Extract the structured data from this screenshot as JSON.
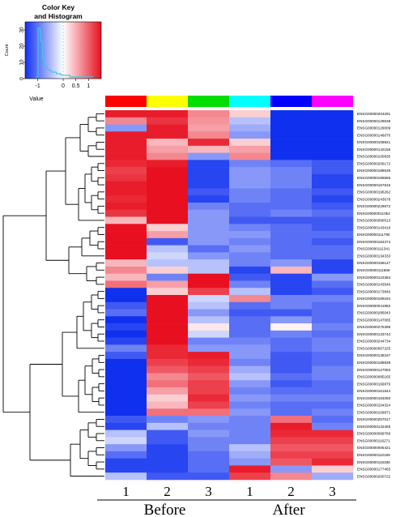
{
  "chart_data": {
    "type": "heatmap",
    "color_key": {
      "title_line1": "Color Key",
      "title_line2": "and Histogram",
      "ylabel": "Count",
      "xlabel": "Value",
      "x_ticks": [
        "-1",
        "0",
        "0.5",
        "1"
      ],
      "x_tick_values": [
        -1,
        0,
        0.5,
        1
      ],
      "y_ticks": [
        "0",
        "10",
        "20",
        "30"
      ],
      "y_tick_values": [
        0,
        10,
        20,
        30
      ],
      "xlim": [
        -1.5,
        1.5
      ],
      "ylim": [
        0,
        35
      ],
      "hist_values": [
        1,
        31,
        23,
        12,
        8,
        6,
        5,
        4,
        4,
        3,
        3,
        2,
        2,
        2,
        2,
        1,
        1,
        1,
        1,
        1,
        1,
        1,
        1,
        1,
        1
      ],
      "hist_bin_start": -1.08,
      "hist_bin_width": 0.09,
      "colors": {
        "low": "#1030f0",
        "mid": "#ffffff",
        "high": "#e81020",
        "hist": "#40c8e8"
      }
    },
    "column_colors": [
      "#ff0000",
      "#ffff00",
      "#00dd00",
      "#00ffff",
      "#0000ff",
      "#ff00ff"
    ],
    "column_labels": [
      "1",
      "2",
      "3",
      "1",
      "2",
      "3"
    ],
    "groups": [
      {
        "label": "Before",
        "columns": [
          0,
          1,
          2
        ]
      },
      {
        "label": "After",
        "columns": [
          3,
          4,
          5
        ]
      }
    ],
    "rows": [
      "ENSG00000204291",
      "ENSG00000129538",
      "ENSG00000129009",
      "ENSG00000146070",
      "ENSG00000108821",
      "ENSG00000142156",
      "ENSG00000100835",
      "ENSG00000206172",
      "ENSG00000188536",
      "ENSG00000196565",
      "ENSG00000167815",
      "ENSG00000196262",
      "ENSG00000243678",
      "ENSG00000229672",
      "ENSG00000011052",
      "ENSG00000090013",
      "ENSG00000143416",
      "ENSG00000111790",
      "ENSG00000184374",
      "ENSG00000111341",
      "ENSG00000134333",
      "ENSG00000166147",
      "ENSG00000111669",
      "ENSG00000123384",
      "ENSG00000143546",
      "ENSG00000173846",
      "ENSG00000169184",
      "ENSG00000041982",
      "ENSG00000285043",
      "ENSG00000147065",
      "ENSG00000275395",
      "ENSG00000133742",
      "ENSG00000244734",
      "ENSG00000067225",
      "ENSG00000138167",
      "ENSG00000188938",
      "ENSG00000127083",
      "ENSG00000085165",
      "ENSG00000166876",
      "ENSG00000161944",
      "ENSG00000164050",
      "ENSG00000104324",
      "ENSG00000109971",
      "ENSG00000257017",
      "ENSG00000132465",
      "ENSG00000099769",
      "ENSG00000116271",
      "ENSG00000005421",
      "ENSG00000110169",
      "ENSG00000115336",
      "ENSG00000177465",
      "ENSG00000260722"
    ],
    "values": [
      [
        0.95,
        0.95,
        0.5,
        0.2,
        -1.0,
        -1.0
      ],
      [
        0.5,
        0.85,
        0.45,
        -0.3,
        -1.0,
        -1.0
      ],
      [
        -0.5,
        0.95,
        0.4,
        -0.4,
        -1.0,
        -1.0
      ],
      [
        0.95,
        0.95,
        0.5,
        -0.5,
        -1.0,
        -1.0
      ],
      [
        0.95,
        0.3,
        0.9,
        0.2,
        -1.0,
        -1.0
      ],
      [
        0.95,
        0.4,
        0.3,
        0.4,
        -1.0,
        -1.0
      ],
      [
        0.95,
        0.5,
        -0.5,
        0.5,
        -1.0,
        -1.0
      ],
      [
        0.9,
        0.95,
        -0.9,
        -0.6,
        -0.7,
        -0.8
      ],
      [
        0.8,
        1.0,
        -0.9,
        -0.5,
        -0.6,
        -0.8
      ],
      [
        0.85,
        1.0,
        -0.9,
        -0.5,
        -0.6,
        -0.9
      ],
      [
        0.95,
        1.0,
        -0.9,
        -0.5,
        -0.6,
        -0.9
      ],
      [
        0.95,
        1.0,
        -0.8,
        -0.6,
        -0.7,
        -0.8
      ],
      [
        0.9,
        1.0,
        -0.9,
        -0.6,
        -0.7,
        -0.9
      ],
      [
        0.95,
        1.0,
        -0.6,
        -0.7,
        -0.7,
        -0.8
      ],
      [
        0.85,
        1.0,
        -0.5,
        -0.7,
        -0.6,
        -0.7
      ],
      [
        0.3,
        1.0,
        -0.5,
        -0.8,
        -0.8,
        -0.8
      ],
      [
        1.0,
        0.2,
        -0.5,
        -0.6,
        -0.7,
        -0.8
      ],
      [
        1.0,
        0.4,
        -0.5,
        -0.5,
        -0.7,
        -0.7
      ],
      [
        1.0,
        -0.8,
        -0.5,
        -0.6,
        -0.7,
        -0.8
      ],
      [
        1.0,
        -0.3,
        -0.7,
        -0.5,
        -0.7,
        -0.7
      ],
      [
        1.0,
        -0.2,
        -0.5,
        -0.6,
        -0.7,
        -0.7
      ],
      [
        0.3,
        -0.3,
        -0.3,
        -0.6,
        -0.5,
        -0.9
      ],
      [
        0.5,
        0.2,
        -0.3,
        -0.9,
        0.3,
        -0.9
      ],
      [
        0.3,
        -0.6,
        1.0,
        -0.8,
        -0.9,
        -0.5
      ],
      [
        0.6,
        0.4,
        1.0,
        -0.6,
        -0.9,
        -0.7
      ],
      [
        -1.0,
        0.2,
        0.8,
        -0.3,
        -0.9,
        -0.8
      ],
      [
        -1.0,
        1.0,
        -0.2,
        0.5,
        -0.6,
        -0.6
      ],
      [
        -0.8,
        1.0,
        -0.3,
        -0.7,
        -0.6,
        -0.7
      ],
      [
        -0.7,
        1.0,
        -0.5,
        -0.8,
        -0.8,
        -0.7
      ],
      [
        -1.0,
        1.0,
        -0.3,
        -0.7,
        -0.5,
        -0.7
      ],
      [
        -0.9,
        1.0,
        0.1,
        -0.7,
        0.05,
        -0.6
      ],
      [
        -1.0,
        1.0,
        -0.2,
        -0.7,
        -0.6,
        -0.7
      ],
      [
        -0.9,
        1.0,
        -0.6,
        -0.6,
        -0.7,
        -0.6
      ],
      [
        -0.6,
        0.9,
        -0.5,
        -0.5,
        -0.7,
        -0.6
      ],
      [
        -0.8,
        0.9,
        0.95,
        -0.5,
        -0.8,
        -0.7
      ],
      [
        -1.0,
        0.8,
        0.9,
        -0.6,
        -0.8,
        -0.7
      ],
      [
        -1.0,
        0.7,
        0.8,
        -0.4,
        -0.8,
        -0.6
      ],
      [
        -1.0,
        0.5,
        0.7,
        -0.3,
        -0.7,
        -0.6
      ],
      [
        -1.0,
        0.6,
        0.8,
        -0.5,
        -0.8,
        -0.7
      ],
      [
        -1.0,
        0.4,
        0.8,
        -0.6,
        -0.7,
        -0.7
      ],
      [
        -1.0,
        0.2,
        0.9,
        -0.5,
        -0.6,
        -0.6
      ],
      [
        -1.0,
        0.3,
        0.8,
        -0.6,
        -0.7,
        -0.7
      ],
      [
        -1.0,
        0.6,
        0.6,
        -0.5,
        -0.7,
        -0.6
      ],
      [
        -0.8,
        -0.6,
        -0.5,
        -0.6,
        0.6,
        -0.7
      ],
      [
        -0.9,
        -0.3,
        -0.6,
        -0.6,
        0.95,
        -0.6
      ],
      [
        -0.3,
        -0.8,
        -0.5,
        -0.6,
        0.9,
        0.9
      ],
      [
        -0.2,
        -0.8,
        -0.6,
        -0.6,
        0.8,
        0.8
      ],
      [
        -0.5,
        -0.9,
        -0.6,
        -0.3,
        0.7,
        0.7
      ],
      [
        -0.7,
        -0.9,
        -0.7,
        -0.4,
        0.8,
        0.8
      ],
      [
        -0.9,
        -0.9,
        -0.7,
        -0.5,
        0.7,
        0.9
      ],
      [
        -0.9,
        -0.9,
        -0.7,
        0.95,
        -0.5,
        0.2
      ],
      [
        -0.3,
        -0.8,
        -0.8,
        0.8,
        0.5,
        -0.4
      ]
    ],
    "colors": {
      "low": "#1030f0",
      "mid": "#ffffff",
      "high": "#e81020",
      "dendrogram": "#000000"
    }
  }
}
